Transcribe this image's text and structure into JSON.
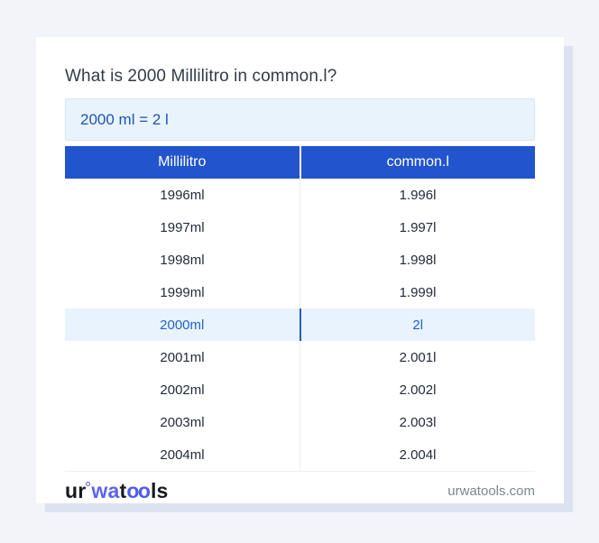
{
  "card": {
    "title": "What is 2000 Millilitro in common.l?",
    "result": "2000 ml = 2 l"
  },
  "table": {
    "headers": [
      "Millilitro",
      "common.l"
    ],
    "rows": [
      {
        "ml": "1996ml",
        "value": "1.996l",
        "highlight": false
      },
      {
        "ml": "1997ml",
        "value": "1.997l",
        "highlight": false
      },
      {
        "ml": "1998ml",
        "value": "1.998l",
        "highlight": false
      },
      {
        "ml": "1999ml",
        "value": "1.999l",
        "highlight": false
      },
      {
        "ml": "2000ml",
        "value": "2l",
        "highlight": true
      },
      {
        "ml": "2001ml",
        "value": "2.001l",
        "highlight": false
      },
      {
        "ml": "2002ml",
        "value": "2.002l",
        "highlight": false
      },
      {
        "ml": "2003ml",
        "value": "2.003l",
        "highlight": false
      },
      {
        "ml": "2004ml",
        "value": "2.004l",
        "highlight": false
      }
    ]
  },
  "footer": {
    "logo": {
      "prefix": "ur",
      "mid": "wa",
      "t": "t",
      "oo": "oo",
      "suffix": "ls"
    },
    "website": "urwatools.com"
  },
  "colors": {
    "page_background": "#f3f4f9",
    "card_background": "#ffffff",
    "card_shadow": "#dce2ef",
    "header_blue": "#2254cd",
    "result_box_background": "#e9f3fc",
    "result_box_border": "#d7e7f6",
    "result_text": "#1d55b2",
    "title_text": "#333b48",
    "row_text": "#232c3b",
    "highlight_row_background": "#e9f3fd",
    "highlight_row_text": "#2263c8",
    "highlight_divider": "#2a5cb5",
    "row_divider": "#e9ecf1",
    "footer_site_text": "#7d8694",
    "logo_dark": "#17191e",
    "logo_violet": "#5a64f2",
    "logo_blue": "#4d5cf0"
  }
}
